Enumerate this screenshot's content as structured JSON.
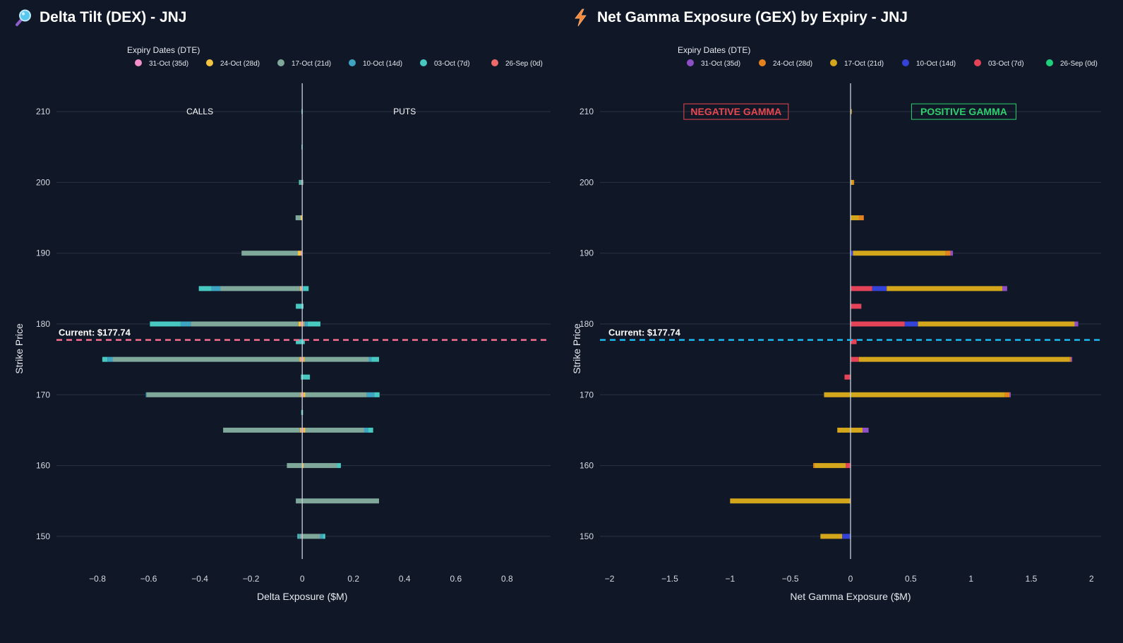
{
  "colors": {
    "background": "#101827",
    "grid": "#2a3344",
    "zero_line": "#c9d1dc",
    "text": "#e6e9ef"
  },
  "dex_panel": {
    "title": "Delta Tilt (DEX) - JNJ",
    "icon": "magnifier-icon"
  },
  "gex_panel": {
    "title": "Net Gamma Exposure (GEX) by Expiry - JNJ",
    "icon": "lightning-icon"
  },
  "chart_data": [
    {
      "type": "bar",
      "orientation": "horizontal",
      "stacked": true,
      "title": "Delta Tilt (DEX) - JNJ",
      "xlabel": "Delta Exposure ($M)",
      "ylabel": "Strike Price",
      "xlim": [
        -0.96,
        0.97
      ],
      "ylim": [
        146,
        214
      ],
      "x_ticks": [
        -0.8,
        -0.6,
        -0.4,
        -0.2,
        0,
        0.2,
        0.4,
        0.6,
        0.8
      ],
      "x_tick_labels": [
        "−0.8",
        "−0.6",
        "−0.4",
        "−0.2",
        "0",
        "0.2",
        "0.4",
        "0.6",
        "0.8"
      ],
      "y_ticks": [
        150,
        160,
        170,
        180,
        190,
        200,
        210
      ],
      "legend_title": "Expiry Dates (DTE)",
      "legend_position": "top",
      "annotations": [
        {
          "text": "CALLS",
          "x": -0.4,
          "y": 210
        },
        {
          "text": "PUTS",
          "x": 0.4,
          "y": 210
        }
      ],
      "current_price": {
        "value": 177.74,
        "label": "Current: $177.74",
        "color": "#f76e8f"
      },
      "series": [
        {
          "name": "31-Oct (35d)",
          "color": "#f58fc9",
          "bars": [
            {
              "strike": 190,
              "neg": -0.005,
              "pos": 0
            },
            {
              "strike": 185,
              "neg": -0.005,
              "pos": 0
            },
            {
              "strike": 180,
              "neg": -0.005,
              "pos": 0.003
            },
            {
              "strike": 175,
              "neg": -0.005,
              "pos": 0.004
            },
            {
              "strike": 170,
              "neg": -0.004,
              "pos": 0.004
            },
            {
              "strike": 165,
              "neg": -0.004,
              "pos": 0.004
            },
            {
              "strike": 160,
              "neg": 0,
              "pos": 0.002
            }
          ]
        },
        {
          "name": "24-Oct (28d)",
          "color": "#f5c442",
          "bars": [
            {
              "strike": 195,
              "neg": -0.006,
              "pos": 0
            },
            {
              "strike": 190,
              "neg": -0.012,
              "pos": 0
            },
            {
              "strike": 185,
              "neg": -0.004,
              "pos": 0
            },
            {
              "strike": 180,
              "neg": -0.01,
              "pos": 0.003
            },
            {
              "strike": 175,
              "neg": -0.006,
              "pos": 0.006
            },
            {
              "strike": 170,
              "neg": -0.004,
              "pos": 0.008
            },
            {
              "strike": 165,
              "neg": -0.005,
              "pos": 0.008
            },
            {
              "strike": 160,
              "neg": 0,
              "pos": 0.004
            }
          ]
        },
        {
          "name": "17-Oct (21d)",
          "color": "#7fa89b",
          "bars": [
            {
              "strike": 210,
              "neg": 0,
              "pos": 0
            },
            {
              "strike": 200,
              "neg": -0.008,
              "pos": 0.004
            },
            {
              "strike": 195,
              "neg": -0.02,
              "pos": 0
            },
            {
              "strike": 190,
              "neg": -0.22,
              "pos": 0
            },
            {
              "strike": 185,
              "neg": -0.31,
              "pos": 0
            },
            {
              "strike": 180,
              "neg": -0.42,
              "pos": 0.005
            },
            {
              "strike": 175,
              "neg": -0.73,
              "pos": 0.25
            },
            {
              "strike": 170,
              "neg": -0.6,
              "pos": 0.24
            },
            {
              "strike": 165,
              "neg": -0.3,
              "pos": 0.23
            },
            {
              "strike": 160,
              "neg": -0.06,
              "pos": 0.13
            },
            {
              "strike": 155,
              "neg": -0.025,
              "pos": 0.3
            },
            {
              "strike": 150,
              "neg": -0.01,
              "pos": 0.07
            }
          ]
        },
        {
          "name": "10-Oct (14d)",
          "color": "#3da4c2",
          "bars": [
            {
              "strike": 210,
              "neg": 0,
              "pos": 0.002
            },
            {
              "strike": 200,
              "neg": 0,
              "pos": 0
            },
            {
              "strike": 185,
              "neg": -0.035,
              "pos": 0.005
            },
            {
              "strike": 180,
              "neg": -0.04,
              "pos": 0.01
            },
            {
              "strike": 175,
              "neg": -0.02,
              "pos": 0.01
            },
            {
              "strike": 170,
              "neg": -0.003,
              "pos": 0.03
            },
            {
              "strike": 165,
              "neg": 0,
              "pos": 0.015
            },
            {
              "strike": 150,
              "neg": -0.004,
              "pos": 0.01
            }
          ]
        },
        {
          "name": "03-Oct (7d)",
          "color": "#47c9c1",
          "bars": [
            {
              "strike": 210,
              "neg": -0.003,
              "pos": 0
            },
            {
              "strike": 205,
              "neg": -0.003,
              "pos": 0
            },
            {
              "strike": 200,
              "neg": -0.005,
              "pos": 0
            },
            {
              "strike": 185,
              "neg": -0.05,
              "pos": 0.02
            },
            {
              "strike": 182.5,
              "neg": -0.025,
              "pos": 0.005
            },
            {
              "strike": 180,
              "neg": -0.12,
              "pos": 0.05
            },
            {
              "strike": 177.5,
              "neg": -0.025,
              "pos": 0.01
            },
            {
              "strike": 175,
              "neg": -0.02,
              "pos": 0.03
            },
            {
              "strike": 172.5,
              "neg": -0.005,
              "pos": 0.03
            },
            {
              "strike": 170,
              "neg": 0,
              "pos": 0.02
            },
            {
              "strike": 167.5,
              "neg": -0.004,
              "pos": 0.003
            },
            {
              "strike": 165,
              "neg": 0,
              "pos": 0.02
            },
            {
              "strike": 160,
              "neg": 0,
              "pos": 0.015
            },
            {
              "strike": 150,
              "neg": -0.005,
              "pos": 0.01
            }
          ]
        },
        {
          "name": "26-Sep (0d)",
          "color": "#f06a6a",
          "bars": []
        }
      ]
    },
    {
      "type": "bar",
      "orientation": "horizontal",
      "stacked": true,
      "title": "Net Gamma Exposure (GEX) by Expiry - JNJ",
      "xlabel": "Net Gamma Exposure ($M)",
      "ylabel": "Strike Price",
      "xlim": [
        -2.08,
        2.08
      ],
      "ylim": [
        146,
        214
      ],
      "x_ticks": [
        -2,
        -1.5,
        -1,
        -0.5,
        0,
        0.5,
        1,
        1.5,
        2
      ],
      "x_tick_labels": [
        "−2",
        "−1.5",
        "−1",
        "−0.5",
        "0",
        "0.5",
        "1",
        "1.5",
        "2"
      ],
      "y_ticks": [
        150,
        160,
        170,
        180,
        190,
        200,
        210
      ],
      "legend_title": "Expiry Dates (DTE)",
      "legend_position": "top",
      "annotations": [
        {
          "text": "NEGATIVE GAMMA",
          "x": -0.95,
          "y": 210,
          "color": "#e8474f"
        },
        {
          "text": "POSITIVE GAMMA",
          "x": 0.94,
          "y": 210,
          "color": "#2fcf6e"
        }
      ],
      "current_price": {
        "value": 177.74,
        "label": "Current: $177.74",
        "color": "#1fb8f0"
      },
      "series": [
        {
          "name": "03-Oct (7d)",
          "color": "#e54357",
          "bars": [
            {
              "strike": 185,
              "neg": 0,
              "pos": 0.18
            },
            {
              "strike": 182.5,
              "neg": 0,
              "pos": 0.09
            },
            {
              "strike": 180,
              "neg": 0,
              "pos": 0.45
            },
            {
              "strike": 177.5,
              "neg": 0,
              "pos": 0.05
            },
            {
              "strike": 175,
              "neg": 0,
              "pos": 0.07
            },
            {
              "strike": 172.5,
              "neg": -0.05,
              "pos": 0
            },
            {
              "strike": 160,
              "neg": -0.04,
              "pos": 0
            }
          ]
        },
        {
          "name": "10-Oct (14d)",
          "color": "#3542d8",
          "bars": [
            {
              "strike": 190,
              "neg": 0,
              "pos": 0.02
            },
            {
              "strike": 185,
              "neg": 0,
              "pos": 0.12
            },
            {
              "strike": 180,
              "neg": 0,
              "pos": 0.11
            },
            {
              "strike": 150,
              "neg": -0.07,
              "pos": 0
            }
          ]
        },
        {
          "name": "17-Oct (21d)",
          "color": "#d4a61c",
          "bars": [
            {
              "strike": 210,
              "neg": 0,
              "pos": 0.01
            },
            {
              "strike": 200,
              "neg": 0,
              "pos": 0.02
            },
            {
              "strike": 195,
              "neg": 0,
              "pos": 0.07
            },
            {
              "strike": 190,
              "neg": 0,
              "pos": 0.77
            },
            {
              "strike": 185,
              "neg": 0,
              "pos": 0.96
            },
            {
              "strike": 180,
              "neg": 0,
              "pos": 1.3
            },
            {
              "strike": 175,
              "neg": 0,
              "pos": 1.75
            },
            {
              "strike": 170,
              "neg": -0.22,
              "pos": 1.28
            },
            {
              "strike": 165,
              "neg": -0.11,
              "pos": 0.1
            },
            {
              "strike": 160,
              "neg": -0.26,
              "pos": 0
            },
            {
              "strike": 155,
              "neg": -1.0,
              "pos": 0
            },
            {
              "strike": 150,
              "neg": -0.18,
              "pos": 0
            }
          ]
        },
        {
          "name": "24-Oct (28d)",
          "color": "#e6821e",
          "bars": [
            {
              "strike": 200,
              "neg": 0,
              "pos": 0.01
            },
            {
              "strike": 195,
              "neg": 0,
              "pos": 0.04
            },
            {
              "strike": 190,
              "neg": 0,
              "pos": 0.04
            },
            {
              "strike": 175,
              "neg": 0,
              "pos": 0.01
            },
            {
              "strike": 170,
              "neg": 0,
              "pos": 0.04
            },
            {
              "strike": 160,
              "neg": -0.01,
              "pos": 0
            }
          ]
        },
        {
          "name": "31-Oct (35d)",
          "color": "#8e4ec6",
          "bars": [
            {
              "strike": 190,
              "neg": 0,
              "pos": 0.02
            },
            {
              "strike": 185,
              "neg": 0,
              "pos": 0.04
            },
            {
              "strike": 180,
              "neg": 0,
              "pos": 0.03
            },
            {
              "strike": 175,
              "neg": 0,
              "pos": 0.01
            },
            {
              "strike": 170,
              "neg": 0,
              "pos": 0.01
            },
            {
              "strike": 165,
              "neg": 0,
              "pos": 0.05
            }
          ]
        },
        {
          "name": "26-Sep (0d)",
          "color": "#1fd17c",
          "bars": []
        }
      ]
    }
  ],
  "legend_order": [
    [
      "31-Oct (35d)",
      "24-Oct (28d)",
      "17-Oct (21d)",
      "10-Oct (14d)",
      "03-Oct (7d)",
      "26-Sep (0d)"
    ],
    [
      "31-Oct (35d)",
      "24-Oct (28d)",
      "17-Oct (21d)",
      "10-Oct (14d)",
      "03-Oct (7d)",
      "26-Sep (0d)"
    ]
  ]
}
